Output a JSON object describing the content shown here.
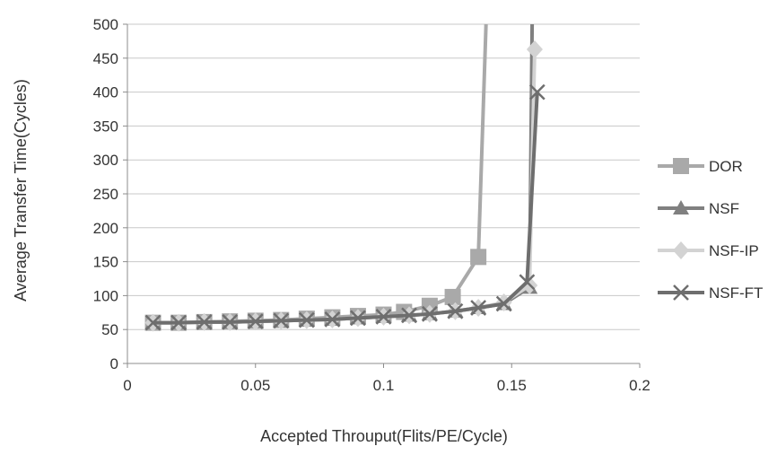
{
  "chart_data": {
    "type": "line",
    "title": "",
    "xlabel": "Accepted Throuput(Flits/PE/Cycle)",
    "ylabel": "Average Transfer Time(Cycles)",
    "xlim": [
      0,
      0.2
    ],
    "ylim": [
      0,
      500
    ],
    "x_ticks": [
      "0",
      "0.05",
      "0.1",
      "0.15",
      "0.2"
    ],
    "y_ticks": [
      "0",
      "50",
      "100",
      "150",
      "200",
      "250",
      "300",
      "350",
      "400",
      "450",
      "500"
    ],
    "grid": "horizontal",
    "legend_position": "right",
    "series": [
      {
        "name": "DOR",
        "color": "#a9a9a9",
        "marker": "square",
        "x": [
          0.01,
          0.02,
          0.03,
          0.04,
          0.05,
          0.06,
          0.07,
          0.08,
          0.09,
          0.1,
          0.108,
          0.118,
          0.127,
          0.137,
          0.14
        ],
        "y": [
          60,
          60,
          61,
          62,
          63,
          64,
          66,
          68,
          70,
          72,
          76,
          85,
          98,
          157,
          500
        ]
      },
      {
        "name": "NSF",
        "color": "#808080",
        "marker": "triangle",
        "x": [
          0.01,
          0.02,
          0.03,
          0.04,
          0.05,
          0.06,
          0.07,
          0.08,
          0.09,
          0.1,
          0.11,
          0.118,
          0.128,
          0.137,
          0.147,
          0.157,
          0.158
        ],
        "y": [
          60,
          60,
          61,
          61,
          62,
          63,
          64,
          65,
          67,
          69,
          71,
          73,
          77,
          82,
          88,
          112,
          500
        ]
      },
      {
        "name": "NSF-IP",
        "color": "#d3d3d3",
        "marker": "diamond",
        "x": [
          0.01,
          0.02,
          0.03,
          0.04,
          0.05,
          0.06,
          0.07,
          0.08,
          0.09,
          0.1,
          0.11,
          0.118,
          0.128,
          0.137,
          0.147,
          0.157,
          0.159
        ],
        "y": [
          60,
          60,
          61,
          61,
          62,
          63,
          64,
          65,
          67,
          69,
          71,
          73,
          77,
          82,
          90,
          115,
          463
        ]
      },
      {
        "name": "NSF-FT",
        "color": "#6e6e6e",
        "marker": "cross",
        "x": [
          0.01,
          0.02,
          0.03,
          0.04,
          0.05,
          0.06,
          0.07,
          0.08,
          0.09,
          0.1,
          0.11,
          0.118,
          0.128,
          0.137,
          0.147,
          0.156,
          0.16
        ],
        "y": [
          60,
          60,
          61,
          61,
          62,
          63,
          64,
          65,
          67,
          69,
          71,
          73,
          77,
          82,
          88,
          120,
          400
        ]
      }
    ]
  }
}
